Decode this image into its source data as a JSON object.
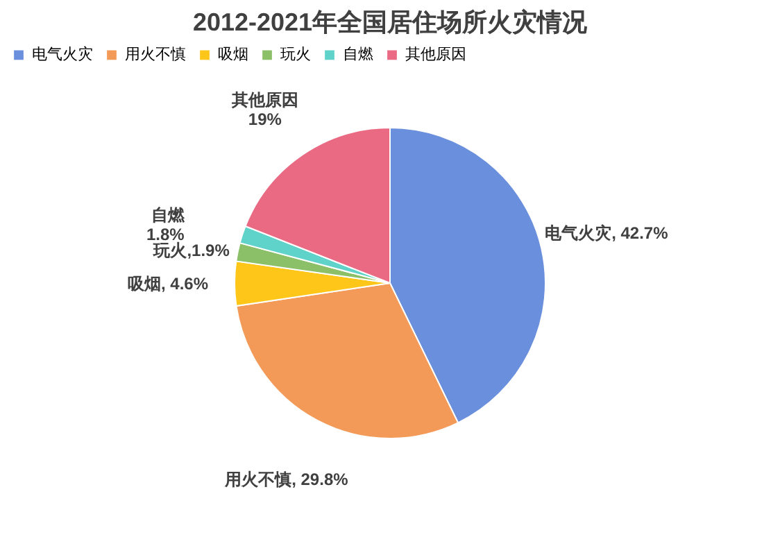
{
  "chart_data": {
    "type": "pie",
    "title": "2012-2021年全国居住场所火灾情况",
    "categories": [
      "电气火灾",
      "用火不慎",
      "吸烟",
      "玩火",
      "自燃",
      "其他原因"
    ],
    "values": [
      42.7,
      29.8,
      4.6,
      1.9,
      1.8,
      19
    ],
    "colors": [
      "#6a8fdc",
      "#f39a58",
      "#ffc61a",
      "#8cc068",
      "#5fd3c9",
      "#ea6a84"
    ],
    "value_labels": [
      "电气火灾, 42.7%",
      "用火不慎, 29.8%",
      "吸烟, 4.6%",
      "玩火,1.9%",
      "自燃\n1.8%",
      "其他原因\n19%"
    ],
    "legend": "top"
  }
}
